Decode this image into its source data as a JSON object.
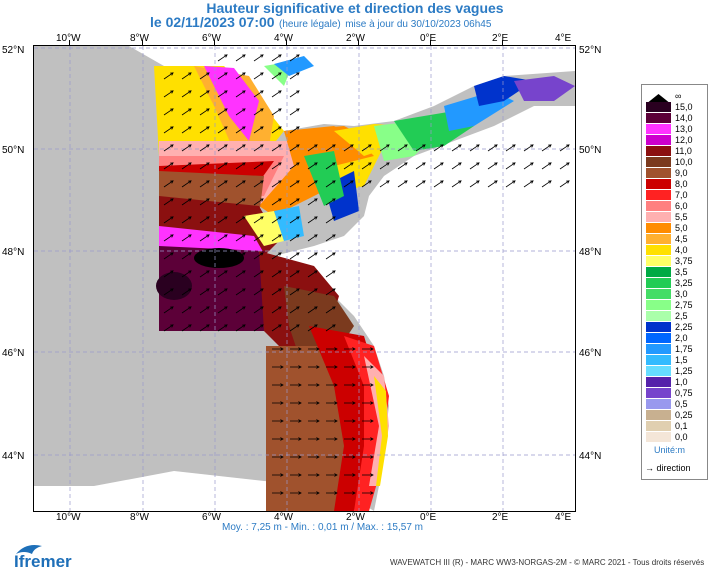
{
  "header": {
    "title": "Hauteur significative et direction des vagues",
    "date": "le 02/11/2023 07:00",
    "local_note": "(heure légale)",
    "update_note": "mise à jour du 30/10/2023 06h45"
  },
  "axes": {
    "longitudes": [
      "10°W",
      "8°W",
      "6°W",
      "4°W",
      "2°W",
      "0°E",
      "2°E",
      "4°E"
    ],
    "latitudes": [
      "52°N",
      "50°N",
      "48°N",
      "46°N",
      "44°N"
    ]
  },
  "legend": {
    "labels": [
      "∞",
      "15,0",
      "14,0",
      "13,0",
      "12,0",
      "11,0",
      "10,0",
      "9,0",
      "8,0",
      "7,0",
      "6,0",
      "5,5",
      "5,0",
      "4,5",
      "4,0",
      "3,75",
      "3,5",
      "3,25",
      "3,0",
      "2,75",
      "2,5",
      "2,25",
      "2,0",
      "1,75",
      "1,5",
      "1,25",
      "1,0",
      "0,75",
      "0,5",
      "0,25",
      "0,1",
      "0,0"
    ],
    "colors": [
      "#000000",
      "#2a0020",
      "#5c0038",
      "#ff33ff",
      "#cc00cc",
      "#8b1010",
      "#7b3a1e",
      "#a0522d",
      "#cc0000",
      "#ff2222",
      "#ff8080",
      "#ffb0b0",
      "#ff8c00",
      "#ffb030",
      "#ffe000",
      "#ffff66",
      "#00aa44",
      "#22cc55",
      "#44dd66",
      "#88ff88",
      "#aaffaa",
      "#0033cc",
      "#0066ff",
      "#2299ff",
      "#33bbff",
      "#66ddff",
      "#5522aa",
      "#7744cc",
      "#9999ee",
      "#c8b090",
      "#e0cfb0",
      "#f4e6d8"
    ],
    "unit": "Unité:m",
    "direction": "direction"
  },
  "stats": "Moy. : 7,25 m   -   Min. : 0,01 m / Max. : 15,57 m",
  "credit": "WAVEWATCH III (R) - MARC  WW3-NORGAS-2M  - © MARC 2021 - Tous droits réservés",
  "logo": {
    "name": "Ifremer"
  }
}
